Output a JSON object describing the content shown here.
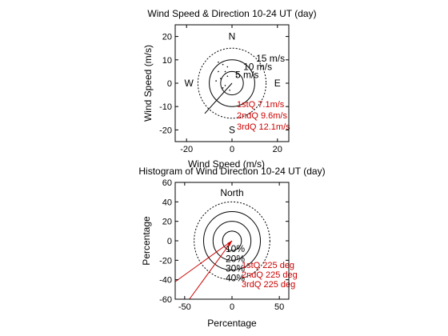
{
  "chart_data": [
    {
      "type": "scatter",
      "title": "Wind Speed & Direction 10-24 UT (day)",
      "xlabel": "Wind Speed (m/s)",
      "ylabel": "Wind Speed (m/s)",
      "xlim": [
        -25,
        25
      ],
      "ylim": [
        -25,
        25
      ],
      "xticks": [
        -20,
        0,
        20
      ],
      "yticks": [
        -20,
        -10,
        0,
        10,
        20
      ],
      "rings": [
        {
          "radius": 5,
          "label": "5 m/s"
        },
        {
          "radius": 10,
          "label": "10 m/s"
        },
        {
          "radius": 15,
          "label": "15 m/s"
        }
      ],
      "compass": {
        "north": "N",
        "south": "S",
        "east": "E",
        "west": "W"
      },
      "points": [
        {
          "x": -4,
          "y": 8
        },
        {
          "x": -6,
          "y": 5
        },
        {
          "x": -5,
          "y": 2
        },
        {
          "x": -3,
          "y": -1
        },
        {
          "x": -2,
          "y": 3
        },
        {
          "x": -7,
          "y": 1
        },
        {
          "x": -1,
          "y": -3
        },
        {
          "x": -4,
          "y": -2
        },
        {
          "x": -6,
          "y": 9
        },
        {
          "x": -2,
          "y": 7
        },
        {
          "x": 2,
          "y": 3
        },
        {
          "x": -3,
          "y": 5
        }
      ],
      "mean_vector": {
        "x": -12,
        "y": -13
      },
      "quartiles": [
        "1stQ 7.1m/s",
        "2ndQ 9.6m/s",
        "3rdQ 12.1m/s"
      ]
    },
    {
      "type": "scatter",
      "title": "Histogram of Wind Direction 10-24 UT (day)",
      "xlabel": "Percentage",
      "ylabel": "Percentage",
      "xlim": [
        -60,
        60
      ],
      "ylim": [
        -60,
        60
      ],
      "xticks": [
        -50,
        0,
        50
      ],
      "yticks": [
        -60,
        -40,
        -20,
        0,
        20,
        40,
        60
      ],
      "rings": [
        {
          "radius": 10,
          "label": "10%"
        },
        {
          "radius": 20,
          "label": "20%"
        },
        {
          "radius": 30,
          "label": "30%"
        },
        {
          "radius": 40,
          "label": "40%"
        }
      ],
      "north_label": "North",
      "direction_vectors": [
        {
          "x": -60,
          "y": -42
        },
        {
          "x": -45,
          "y": -60
        }
      ],
      "quartiles": [
        "1stQ 225 deg",
        "2ndQ 225 deg",
        "3rdQ 225 deg"
      ]
    }
  ]
}
